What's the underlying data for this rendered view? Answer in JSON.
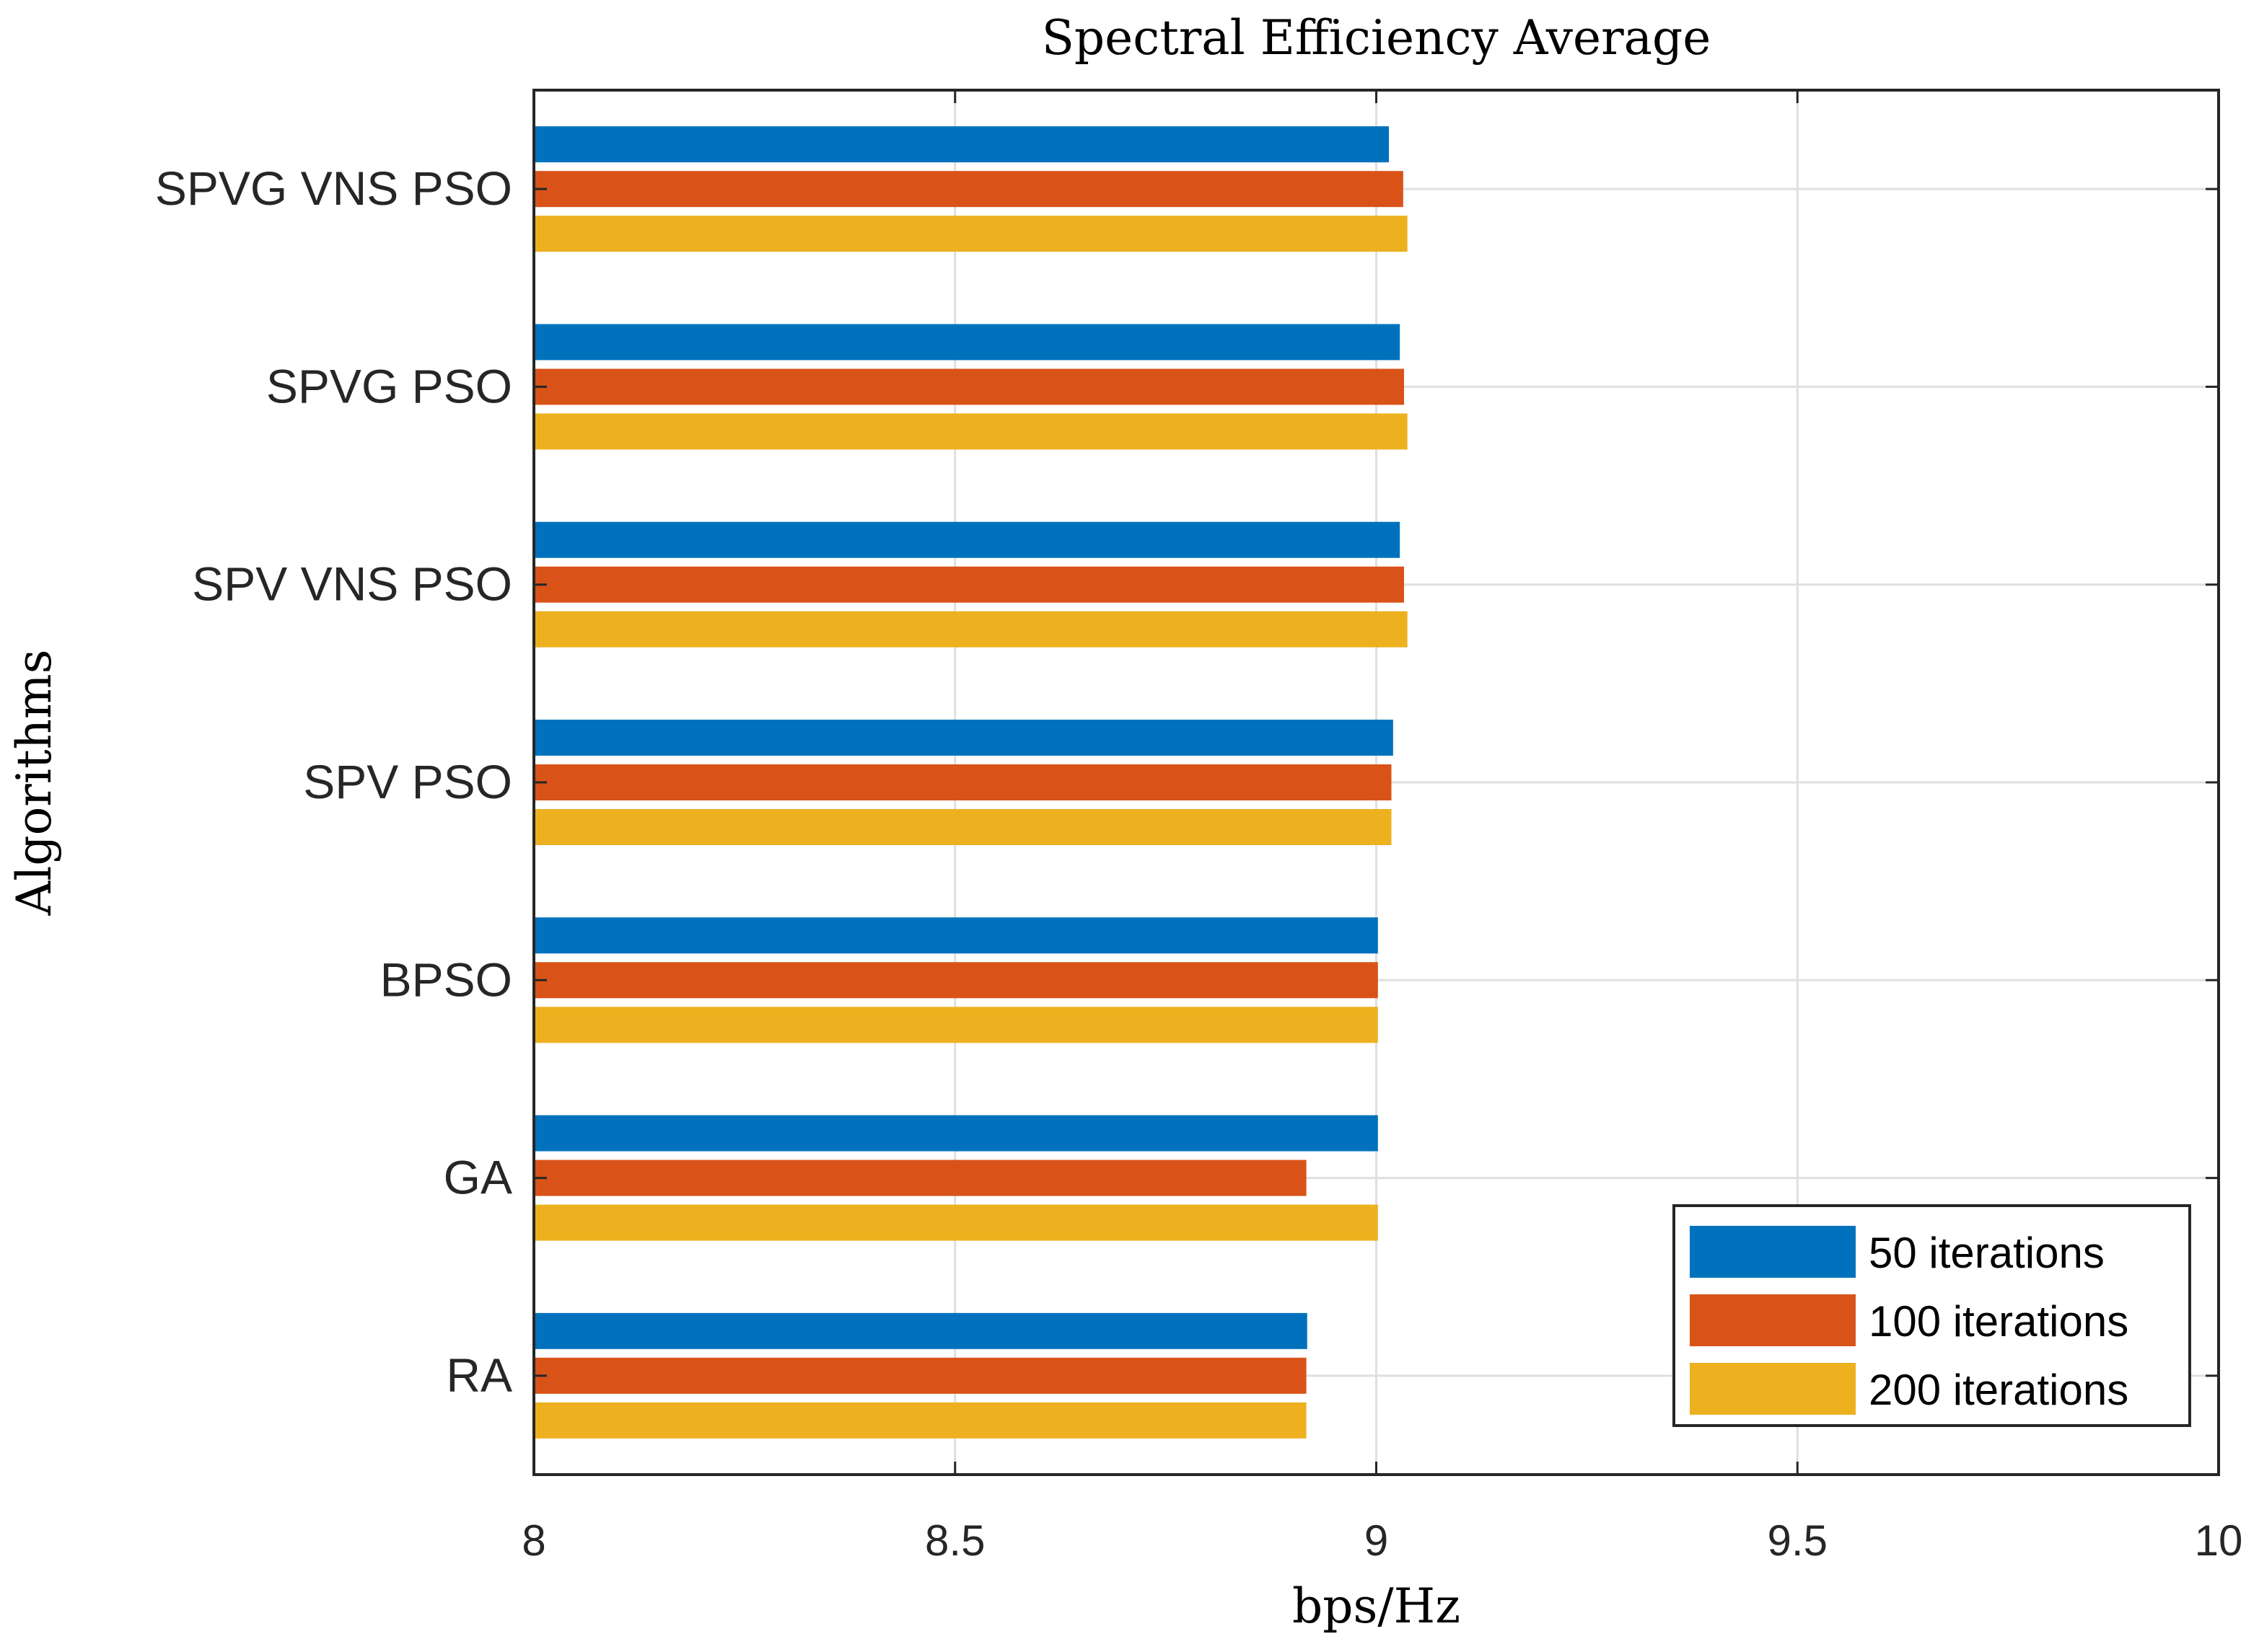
{
  "chart_data": {
    "type": "bar",
    "orientation": "horizontal",
    "title": "Spectral Efficiency Average",
    "xlabel": "bps/Hz",
    "ylabel": "Algorithms",
    "xlim": [
      8,
      10
    ],
    "xticks": [
      "8",
      "8.5",
      "9",
      "9.5",
      "10"
    ],
    "xtick_values": [
      8,
      8.5,
      9,
      9.5,
      10
    ],
    "grid": true,
    "legend_position": "bottom-right",
    "categories": [
      "SPVG VNS PSO",
      "SPVG PSO",
      "SPV VNS PSO",
      "SPV PSO",
      "BPSO",
      "GA",
      "RA"
    ],
    "series": [
      {
        "name": "50 iterations",
        "color": "#0072BD",
        "values": [
          9.015,
          9.028,
          9.028,
          9.02,
          9.002,
          9.002,
          8.918
        ]
      },
      {
        "name": "100 iterations",
        "color": "#D95319",
        "values": [
          9.032,
          9.033,
          9.033,
          9.018,
          9.002,
          8.917,
          8.917
        ]
      },
      {
        "name": "200 iterations",
        "color": "#EDB120",
        "values": [
          9.037,
          9.037,
          9.037,
          9.018,
          9.002,
          9.002,
          8.917
        ]
      }
    ]
  }
}
